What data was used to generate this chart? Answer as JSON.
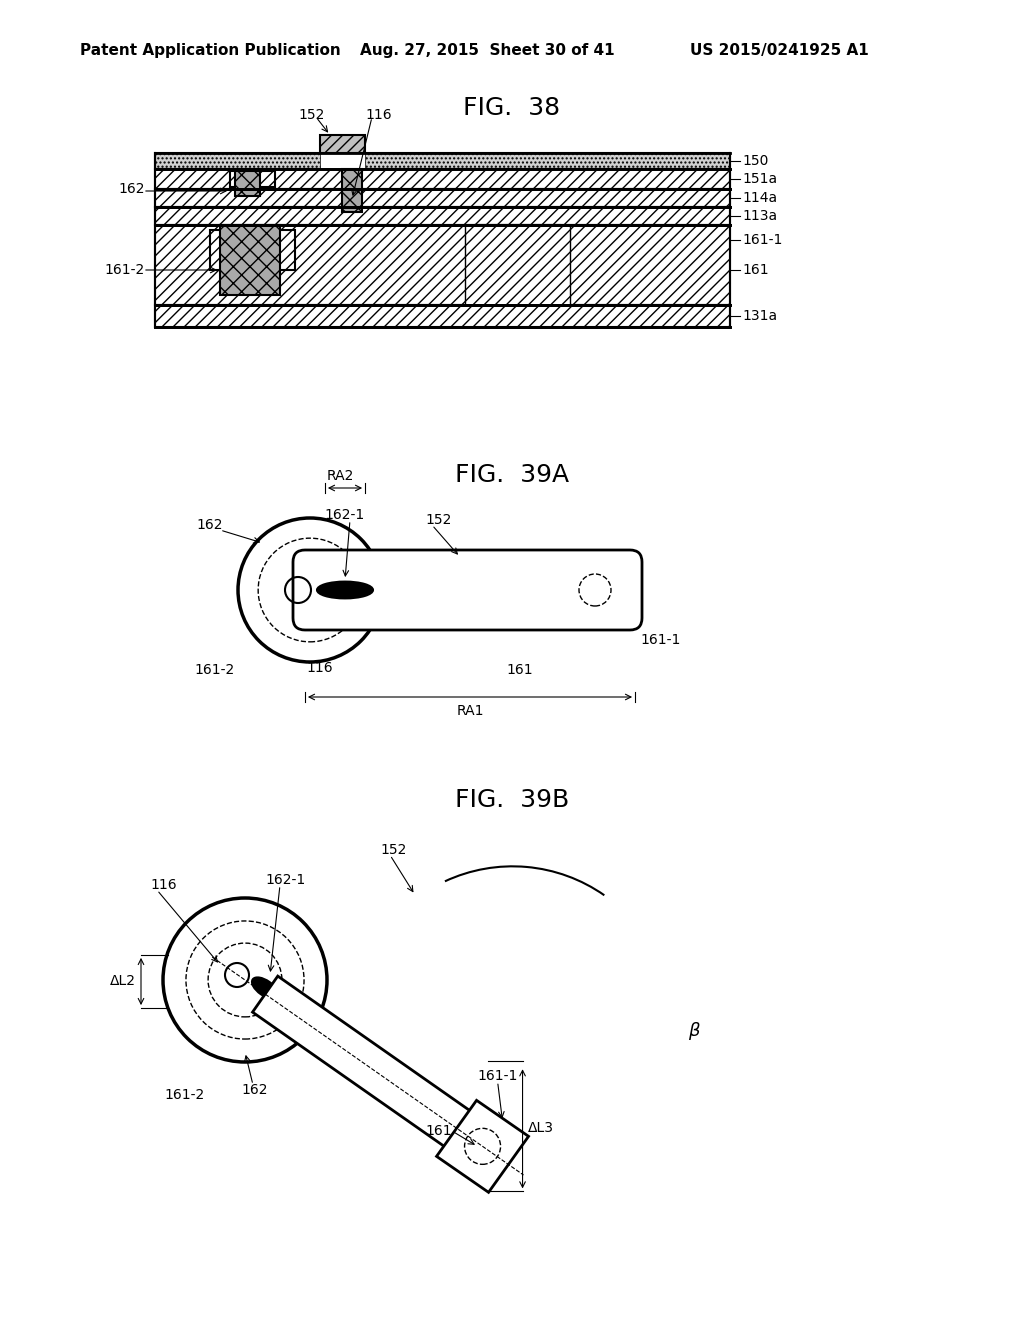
{
  "header_left": "Patent Application Publication",
  "header_center": "Aug. 27, 2015  Sheet 30 of 41",
  "header_right": "US 2015/0241925 A1",
  "fig38_title": "FIG.  38",
  "fig39a_title": "FIG.  39A",
  "fig39b_title": "FIG.  39B",
  "background": "#ffffff",
  "line_color": "#000000"
}
